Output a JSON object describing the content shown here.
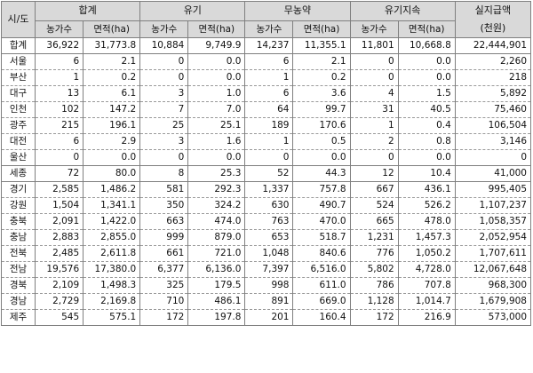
{
  "header": {
    "region": "시/도",
    "groups": [
      "합계",
      "유기",
      "무농약",
      "유기지속"
    ],
    "sub": {
      "count": "농가수",
      "area": "면적(ha)"
    },
    "amount": "실지급액\n(천원)"
  },
  "rows": [
    {
      "name": "합계",
      "cells": [
        "36,922",
        "31,773.8",
        "10,884",
        "9,749.9",
        "14,237",
        "11,355.1",
        "11,801",
        "10,668.8",
        "22,444,901"
      ]
    },
    {
      "name": "서울",
      "cells": [
        "6",
        "2.1",
        "0",
        "0.0",
        "6",
        "2.1",
        "0",
        "0.0",
        "2,260"
      ]
    },
    {
      "name": "부산",
      "cells": [
        "1",
        "0.2",
        "0",
        "0.0",
        "1",
        "0.2",
        "0",
        "0.0",
        "218"
      ]
    },
    {
      "name": "대구",
      "cells": [
        "13",
        "6.1",
        "3",
        "1.0",
        "6",
        "3.6",
        "4",
        "1.5",
        "5,892"
      ]
    },
    {
      "name": "인천",
      "cells": [
        "102",
        "147.2",
        "7",
        "7.0",
        "64",
        "99.7",
        "31",
        "40.5",
        "75,460"
      ]
    },
    {
      "name": "광주",
      "cells": [
        "215",
        "196.1",
        "25",
        "25.1",
        "189",
        "170.6",
        "1",
        "0.4",
        "106,504"
      ]
    },
    {
      "name": "대전",
      "cells": [
        "6",
        "2.9",
        "3",
        "1.6",
        "1",
        "0.5",
        "2",
        "0.8",
        "3,146"
      ]
    },
    {
      "name": "울산",
      "cells": [
        "0",
        "0.0",
        "0",
        "0.0",
        "0",
        "0.0",
        "0",
        "0.0",
        "0"
      ]
    },
    {
      "name": "세종",
      "cells": [
        "72",
        "80.0",
        "8",
        "25.3",
        "52",
        "44.3",
        "12",
        "10.4",
        "41,000"
      ]
    },
    {
      "name": "경기",
      "cells": [
        "2,585",
        "1,486.2",
        "581",
        "292.3",
        "1,337",
        "757.8",
        "667",
        "436.1",
        "995,405"
      ]
    },
    {
      "name": "강원",
      "cells": [
        "1,504",
        "1,341.1",
        "350",
        "324.2",
        "630",
        "490.7",
        "524",
        "526.2",
        "1,107,237"
      ]
    },
    {
      "name": "충북",
      "cells": [
        "2,091",
        "1,422.0",
        "663",
        "474.0",
        "763",
        "470.0",
        "665",
        "478.0",
        "1,058,357"
      ]
    },
    {
      "name": "충남",
      "cells": [
        "2,883",
        "2,855.0",
        "999",
        "879.0",
        "653",
        "518.7",
        "1,231",
        "1,457.3",
        "2,052,954"
      ]
    },
    {
      "name": "전북",
      "cells": [
        "2,485",
        "2,611.8",
        "661",
        "721.0",
        "1,048",
        "840.6",
        "776",
        "1,050.2",
        "1,707,611"
      ]
    },
    {
      "name": "전남",
      "cells": [
        "19,576",
        "17,380.0",
        "6,377",
        "6,136.0",
        "7,397",
        "6,516.0",
        "5,802",
        "4,728.0",
        "12,067,648"
      ]
    },
    {
      "name": "경북",
      "cells": [
        "2,109",
        "1,498.3",
        "325",
        "179.5",
        "998",
        "611.0",
        "786",
        "707.8",
        "968,300"
      ]
    },
    {
      "name": "경남",
      "cells": [
        "2,729",
        "2,169.8",
        "710",
        "486.1",
        "891",
        "669.0",
        "1,128",
        "1,014.7",
        "1,679,908"
      ]
    },
    {
      "name": "제주",
      "cells": [
        "545",
        "575.1",
        "172",
        "197.8",
        "201",
        "160.4",
        "172",
        "216.9",
        "573,000"
      ]
    }
  ]
}
